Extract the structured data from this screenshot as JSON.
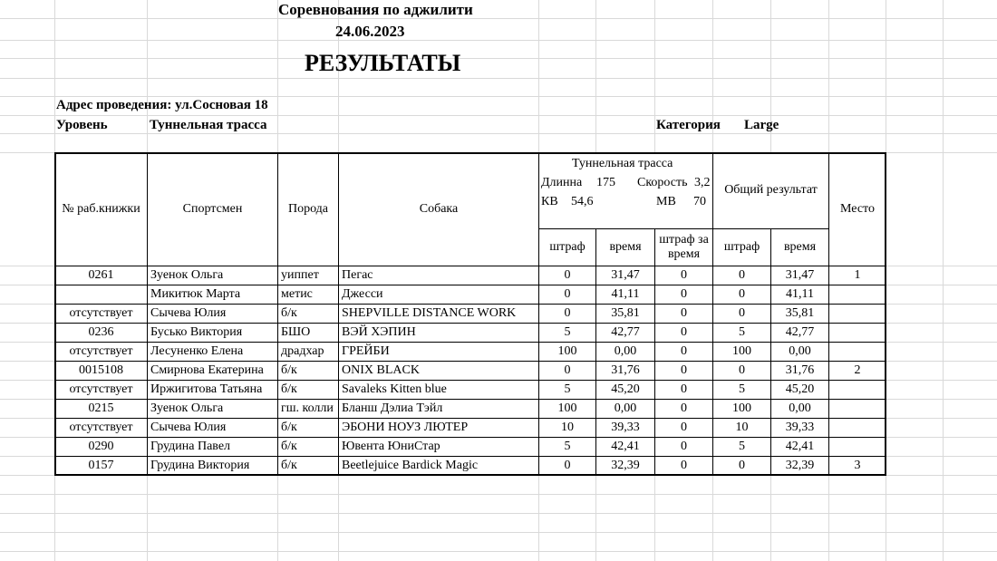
{
  "header": {
    "title": "Соревнования по аджилити",
    "date": "24.06.2023",
    "results": "РЕЗУЛЬТАТЫ",
    "address": "Адрес проведения: ул.Сосновая 18",
    "level_label": "Уровень",
    "level": "Туннельная трасса",
    "category_label": "Категория",
    "category": "Large"
  },
  "table": {
    "columns": [
      "№ раб.книжки",
      "Спортсмен",
      "Порода",
      "Собака"
    ],
    "course": {
      "title": "Туннельная трасса",
      "length_label": "Длинна",
      "length": "175",
      "speed_label": "Скорость",
      "speed": "3,2",
      "kv_label": "КВ",
      "kv": "54,6",
      "mv_label": "МВ",
      "mv": "70"
    },
    "course_columns": [
      "штраф",
      "время",
      "штраф за время"
    ],
    "total": "Общий результат",
    "total_columns": [
      "штраф",
      "время"
    ],
    "place": "Место",
    "rows": [
      [
        "0261",
        "Зуенок Ольга",
        "уиппет",
        "Пегас",
        "0",
        "31,47",
        "0",
        "0",
        "31,47",
        "1"
      ],
      [
        null,
        "Микитюк Марта",
        "метис",
        "Джесси",
        "0",
        "41,11",
        "0",
        "0",
        "41,11",
        null
      ],
      [
        "отсутствует",
        "Сычева Юлия",
        "б/к",
        "SHEPVILLE DISTANCE WORK",
        "0",
        "35,81",
        "0",
        "0",
        "35,81",
        null
      ],
      [
        "0236",
        "Бусько Виктория",
        "БШО",
        "ВЭЙ ХЭПИН",
        "5",
        "42,77",
        "0",
        "5",
        "42,77",
        null
      ],
      [
        "отсутствует",
        "Лесуненко Елена",
        "драдхар",
        "ГРЕЙБИ",
        "100",
        "0,00",
        "0",
        "100",
        "0,00",
        null
      ],
      [
        "0015108",
        "Смирнова Екатерина",
        "б/к",
        "ONIX BLACK",
        "0",
        "31,76",
        "0",
        "0",
        "31,76",
        "2"
      ],
      [
        "отсутствует",
        "Иржигитова Татьяна",
        "б/к",
        "Savaleks Kitten blue",
        "5",
        "45,20",
        "0",
        "5",
        "45,20",
        null
      ],
      [
        "0215",
        "Зуенок Ольга",
        "гш. колли",
        "Бланш Дэлиа Тэйл",
        "100",
        "0,00",
        "0",
        "100",
        "0,00",
        null
      ],
      [
        "отсутствует",
        "Сычева Юлия",
        "б/к",
        "ЭБОНИ НОУЗ ЛЮТЕР",
        "10",
        "39,33",
        "0",
        "10",
        "39,33",
        null
      ],
      [
        "0290",
        "Грудина Павел",
        "б/к",
        "Ювента ЮниСтар",
        "5",
        "42,41",
        "0",
        "5",
        "42,41",
        null
      ],
      [
        "0157",
        "Грудина Виктория",
        "б/к",
        "Beetlejuice Bardick Magic",
        "0",
        "32,39",
        "0",
        "0",
        "32,39",
        "3"
      ]
    ]
  }
}
